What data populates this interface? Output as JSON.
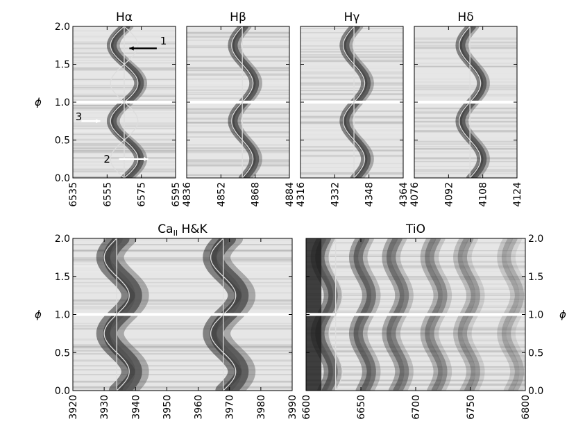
{
  "figure": {
    "ylabel": "ϕ",
    "annotations": [
      "1",
      "2",
      "3"
    ]
  },
  "chart_data": [
    {
      "type": "heatmap",
      "title": "Hα",
      "xlim": [
        6535,
        6595
      ],
      "ylim": [
        0.0,
        2.0
      ],
      "xticks": [
        "6535",
        "6555",
        "6575",
        "6595"
      ],
      "yticks": [
        "0.0",
        "0.5",
        "1.0",
        "1.5",
        "2.0"
      ],
      "ylabel": "ϕ",
      "feature_centers": [
        6565
      ],
      "rest_line": 6565,
      "velocity_amplitude": 8,
      "gap": [
        1.0,
        1.02
      ]
    },
    {
      "type": "heatmap",
      "title": "Hβ",
      "xlim": [
        4836,
        4884
      ],
      "ylim": [
        0.0,
        2.0
      ],
      "xticks": [
        "4836",
        "4852",
        "4868",
        "4884"
      ],
      "feature_centers": [
        4862
      ],
      "rest_line": 4862,
      "velocity_amplitude": 5
    },
    {
      "type": "heatmap",
      "title": "Hγ",
      "xlim": [
        4316,
        4364
      ],
      "ylim": [
        0.0,
        2.0
      ],
      "xticks": [
        "4316",
        "4332",
        "4348",
        "4364"
      ],
      "feature_centers": [
        4341
      ],
      "rest_line": 4341,
      "velocity_amplitude": 5
    },
    {
      "type": "heatmap",
      "title": "Hδ",
      "xlim": [
        4076,
        4124
      ],
      "ylim": [
        0.0,
        2.0
      ],
      "xticks": [
        "4076",
        "4092",
        "4108",
        "4124"
      ],
      "feature_centers": [
        4102
      ],
      "rest_line": 4102,
      "velocity_amplitude": 5
    },
    {
      "type": "heatmap",
      "title": "Ca",
      "title_sub": "II",
      "title_suffix": " H&K",
      "xlim": [
        3920,
        3990
      ],
      "ylim": [
        0.0,
        2.0
      ],
      "xticks": [
        "3920",
        "3930",
        "3940",
        "3950",
        "3960",
        "3970",
        "3980",
        "3990"
      ],
      "feature_centers": [
        3934,
        3968
      ],
      "rest_line": 3934,
      "velocity_amplitude": 4
    },
    {
      "type": "heatmap",
      "title": "TiO",
      "xlim": [
        6600,
        6800
      ],
      "ylim": [
        0.0,
        2.0
      ],
      "xticks": [
        "6600",
        "6650",
        "6700",
        "6750",
        "6800"
      ],
      "feature_centers": [
        6615,
        6650,
        6680,
        6715,
        6745,
        6785
      ],
      "rest_line": 6627,
      "velocity_amplitude": 6
    }
  ]
}
